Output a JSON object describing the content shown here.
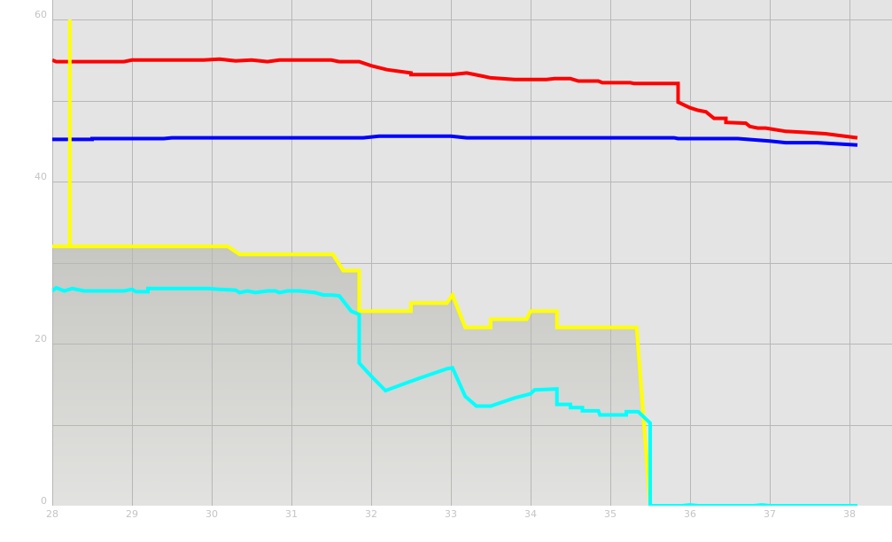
{
  "chart_data": {
    "type": "line",
    "title": "",
    "xlabel": "",
    "ylabel": "",
    "xlim": [
      28,
      38.5
    ],
    "ylim": [
      0,
      60
    ],
    "x_ticks": [
      "28",
      "29",
      "30",
      "31",
      "32",
      "33",
      "34",
      "35",
      "36",
      "37",
      "38"
    ],
    "y_ticks": [
      "0",
      "20",
      "40",
      "60"
    ],
    "grid": true,
    "legend": "none",
    "colors": {
      "background": "#e4e4e4",
      "grid": "#b7b7b7",
      "area_top": "#c6c6c2",
      "area_bottom": "#e2e2e0",
      "tick_label": "#c4c4c4"
    },
    "series": [
      {
        "color": "#ff0000",
        "points": [
          [
            28,
            55
          ],
          [
            28.05,
            54.8
          ],
          [
            28.2,
            54.8
          ],
          [
            28.9,
            54.8
          ],
          [
            29.0,
            55
          ],
          [
            29.9,
            55
          ],
          [
            30.1,
            55.1
          ],
          [
            30.3,
            54.9
          ],
          [
            30.5,
            55
          ],
          [
            30.7,
            54.8
          ],
          [
            30.85,
            55
          ],
          [
            31.5,
            55
          ],
          [
            31.6,
            54.8
          ],
          [
            31.85,
            54.8
          ],
          [
            32.0,
            54.3
          ],
          [
            32.2,
            53.8
          ],
          [
            32.5,
            53.4
          ],
          [
            32.5,
            53.2
          ],
          [
            33.0,
            53.2
          ],
          [
            33.2,
            53.4
          ],
          [
            33.4,
            53
          ],
          [
            33.5,
            52.8
          ],
          [
            33.8,
            52.6
          ],
          [
            34.2,
            52.6
          ],
          [
            34.3,
            52.7
          ],
          [
            34.5,
            52.7
          ],
          [
            34.6,
            52.4
          ],
          [
            34.85,
            52.4
          ],
          [
            34.9,
            52.2
          ],
          [
            35.25,
            52.2
          ],
          [
            35.3,
            52.1
          ],
          [
            35.85,
            52.1
          ],
          [
            35.85,
            49.8
          ],
          [
            36.0,
            49.1
          ],
          [
            36.1,
            48.8
          ],
          [
            36.2,
            48.6
          ],
          [
            36.3,
            47.8
          ],
          [
            36.45,
            47.8
          ],
          [
            36.45,
            47.3
          ],
          [
            36.7,
            47.2
          ],
          [
            36.75,
            46.8
          ],
          [
            36.85,
            46.6
          ],
          [
            36.95,
            46.6
          ],
          [
            37.2,
            46.2
          ],
          [
            37.4,
            46.1
          ],
          [
            37.7,
            45.9
          ],
          [
            38.1,
            45.4
          ]
        ]
      },
      {
        "color": "#0000ff",
        "points": [
          [
            28,
            45.2
          ],
          [
            28.5,
            45.2
          ],
          [
            28.5,
            45.3
          ],
          [
            29.4,
            45.3
          ],
          [
            29.5,
            45.4
          ],
          [
            31.9,
            45.4
          ],
          [
            32.1,
            45.6
          ],
          [
            33.0,
            45.6
          ],
          [
            33.2,
            45.4
          ],
          [
            35.8,
            45.4
          ],
          [
            35.85,
            45.3
          ],
          [
            36.6,
            45.3
          ],
          [
            37.0,
            45
          ],
          [
            37.2,
            44.8
          ],
          [
            37.6,
            44.8
          ],
          [
            38.1,
            44.5
          ]
        ]
      },
      {
        "color": "#ffff00",
        "area": true,
        "points": [
          [
            28,
            32
          ],
          [
            28.22,
            32
          ],
          [
            28.22,
            60
          ],
          [
            28.22,
            32
          ],
          [
            30.2,
            32
          ],
          [
            30.35,
            31
          ],
          [
            31.52,
            31
          ],
          [
            31.65,
            29
          ],
          [
            31.85,
            29
          ],
          [
            31.85,
            24
          ],
          [
            32.5,
            24
          ],
          [
            32.5,
            25
          ],
          [
            32.95,
            25
          ],
          [
            33.02,
            26
          ],
          [
            33.18,
            22
          ],
          [
            33.5,
            22
          ],
          [
            33.5,
            23
          ],
          [
            33.95,
            23
          ],
          [
            34.0,
            24
          ],
          [
            34.33,
            24
          ],
          [
            34.33,
            22
          ],
          [
            35.33,
            22
          ],
          [
            35.5,
            0
          ],
          [
            35.5,
            0
          ]
        ]
      },
      {
        "color": "#00ffff",
        "points": [
          [
            28,
            26.5
          ],
          [
            28.05,
            26.9
          ],
          [
            28.15,
            26.5
          ],
          [
            28.25,
            26.8
          ],
          [
            28.4,
            26.5
          ],
          [
            28.9,
            26.5
          ],
          [
            29.0,
            26.7
          ],
          [
            29.05,
            26.4
          ],
          [
            29.2,
            26.4
          ],
          [
            29.2,
            26.8
          ],
          [
            29.7,
            26.8
          ],
          [
            29.95,
            26.8
          ],
          [
            30.1,
            26.7
          ],
          [
            30.3,
            26.6
          ],
          [
            30.35,
            26.3
          ],
          [
            30.45,
            26.5
          ],
          [
            30.55,
            26.3
          ],
          [
            30.7,
            26.5
          ],
          [
            30.8,
            26.5
          ],
          [
            30.85,
            26.3
          ],
          [
            30.95,
            26.5
          ],
          [
            31.1,
            26.5
          ],
          [
            31.3,
            26.3
          ],
          [
            31.4,
            26
          ],
          [
            31.5,
            26
          ],
          [
            31.6,
            25.9
          ],
          [
            31.75,
            24
          ],
          [
            31.85,
            23.6
          ],
          [
            31.85,
            17.6
          ],
          [
            32.0,
            16
          ],
          [
            32.18,
            14.2
          ],
          [
            32.4,
            15
          ],
          [
            32.6,
            15.7
          ],
          [
            32.95,
            16.9
          ],
          [
            33.02,
            17
          ],
          [
            33.18,
            13.5
          ],
          [
            33.32,
            12.3
          ],
          [
            33.5,
            12.3
          ],
          [
            33.8,
            13.3
          ],
          [
            34.0,
            13.8
          ],
          [
            34.05,
            14.3
          ],
          [
            34.33,
            14.4
          ],
          [
            34.33,
            12.5
          ],
          [
            34.5,
            12.5
          ],
          [
            34.5,
            12.1
          ],
          [
            34.65,
            12.1
          ],
          [
            34.65,
            11.7
          ],
          [
            34.85,
            11.7
          ],
          [
            34.87,
            11.2
          ],
          [
            35.2,
            11.2
          ],
          [
            35.2,
            11.6
          ],
          [
            35.35,
            11.6
          ],
          [
            35.5,
            10.2
          ],
          [
            35.5,
            0
          ],
          [
            35.9,
            0
          ],
          [
            36.0,
            0.1
          ],
          [
            36.1,
            0
          ],
          [
            36.8,
            0
          ],
          [
            36.9,
            0.1
          ],
          [
            37.0,
            0
          ],
          [
            38.1,
            0
          ]
        ]
      }
    ]
  }
}
